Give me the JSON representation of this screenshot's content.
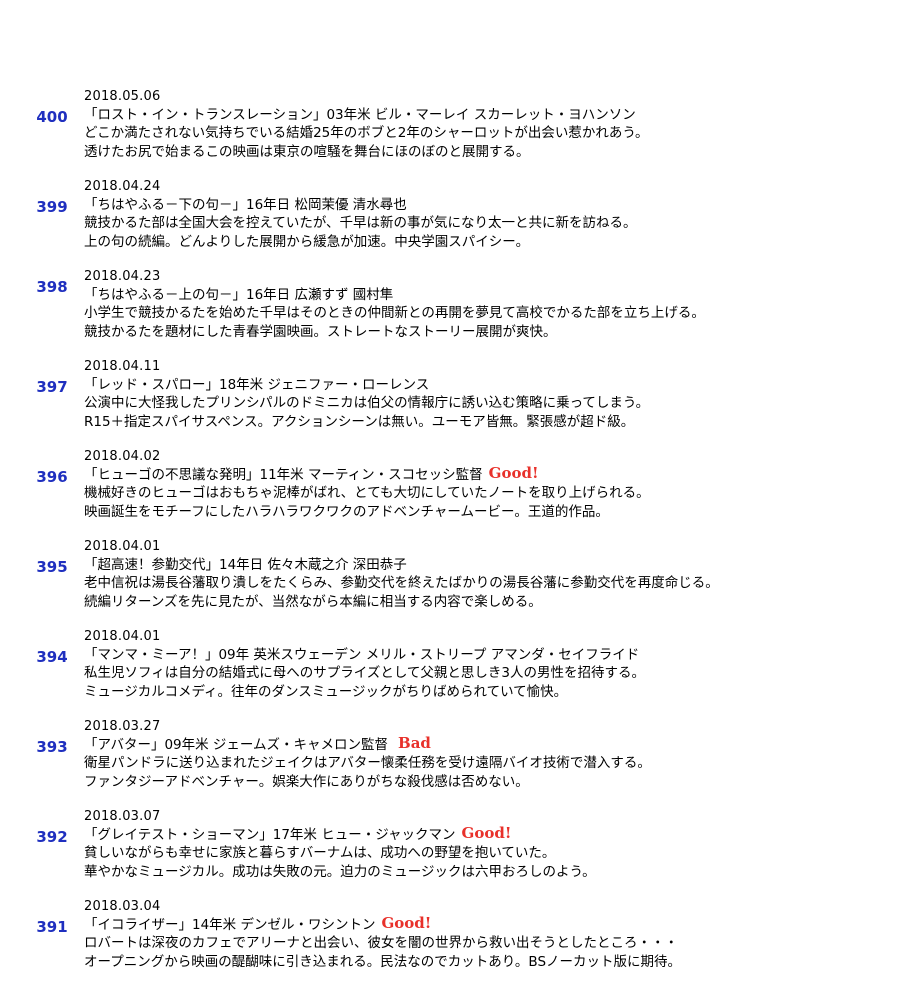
{
  "entries": [
    {
      "num": "400",
      "date": "2018.05.06",
      "title": "「ロスト・イン・トランスレーション」03年米 ビル・マーレイ スカーレット・ヨハンソン",
      "rating": "",
      "desc1": "どこか満たされない気持ちでいる結婚25年のボブと2年のシャーロットが出会い惹かれあう。",
      "desc2": "透けたお尻で始まるこの映画は東京の喧騒を舞台にほのぼのと展開する。"
    },
    {
      "num": "399",
      "date": "2018.04.24",
      "title": "「ちはやふる－下の句－」16年日 松岡茉優 清水尋也",
      "rating": "",
      "desc1": "競技かるた部は全国大会を控えていたが、千早は新の事が気になり太一と共に新を訪ねる。",
      "desc2": "上の句の続編。どんよりした展開から緩急が加速。中央学園スパイシー。"
    },
    {
      "num": "398",
      "date": "2018.04.23",
      "title": "「ちはやふる－上の句－」16年日 広瀬すず 國村隼",
      "rating": "",
      "desc1": "小学生で競技かるたを始めた千早はそのときの仲間新との再開を夢見て高校でかるた部を立ち上げる。",
      "desc2": "競技かるたを題材にした青春学園映画。ストレートなストーリー展開が爽快。"
    },
    {
      "num": "397",
      "date": "2018.04.11",
      "title": "「レッド・スパロー」18年米 ジェニファー・ローレンス",
      "rating": "",
      "desc1": "公演中に大怪我したプリンシパルのドミニカは伯父の情報庁に誘い込む策略に乗ってしまう。",
      "desc2": "R15＋指定スパイサスペンス。アクションシーンは無い。ユーモア皆無。緊張感が超ド級。"
    },
    {
      "num": "396",
      "date": "2018.04.02",
      "title": "「ヒューゴの不思議な発明」11年米 マーティン・スコセッシ監督",
      "rating": "Good!",
      "desc1": "機械好きのヒューゴはおもちゃ泥棒がばれ、とても大切にしていたノートを取り上げられる。",
      "desc2": "映画誕生をモチーフにしたハラハラワクワクのアドベンチャームービー。王道的作品。"
    },
    {
      "num": "395",
      "date": "2018.04.01",
      "title": "「超高速！参勤交代」14年日 佐々木蔵之介 深田恭子",
      "rating": "",
      "desc1": "老中信祝は湯長谷藩取り潰しをたくらみ、参勤交代を終えたばかりの湯長谷藩に参勤交代を再度命じる。",
      "desc2": "続編リターンズを先に見たが、当然ながら本編に相当する内容で楽しめる。"
    },
    {
      "num": "394",
      "date": "2018.04.01",
      "title": "「マンマ・ミーア！」09年 英米スウェーデン メリル・ストリープ アマンダ・セイフライド",
      "rating": "",
      "desc1": "私生児ソフィは自分の結婚式に母へのサプライズとして父親と思しき3人の男性を招待する。",
      "desc2": "ミュージカルコメディ。往年のダンスミュージックがちりばめられていて愉快。"
    },
    {
      "num": "393",
      "date": "2018.03.27",
      "title": "「アバター」09年米 ジェームズ・キャメロン監督",
      "rating": "Bad",
      "desc1": "衛星パンドラに送り込まれたジェイクはアバター懐柔任務を受け遠隔バイオ技術で潜入する。",
      "desc2": "ファンタジーアドベンチャー。娯楽大作にありがちな殺伐感は否めない。"
    },
    {
      "num": "392",
      "date": "2018.03.07",
      "title": "「グレイテスト・ショーマン」17年米 ヒュー・ジャックマン",
      "rating": "Good!",
      "desc1": "貧しいながらも幸せに家族と暮らすバーナムは、成功への野望を抱いていた。",
      "desc2": "華やかなミュージカル。成功は失敗の元。迫力のミュージックは六甲おろしのよう。"
    },
    {
      "num": "391",
      "date": "2018.03.04",
      "title": "「イコライザー」14年米 デンゼル・ワシントン",
      "rating": "Good!",
      "desc1": "ロバートは深夜のカフェでアリーナと出会い、彼女を闇の世界から救い出そうとしたところ・・・",
      "desc2": "オープニングから映画の醍醐味に引き込まれる。民法なのでカットあり。BSノーカット版に期待。"
    }
  ]
}
